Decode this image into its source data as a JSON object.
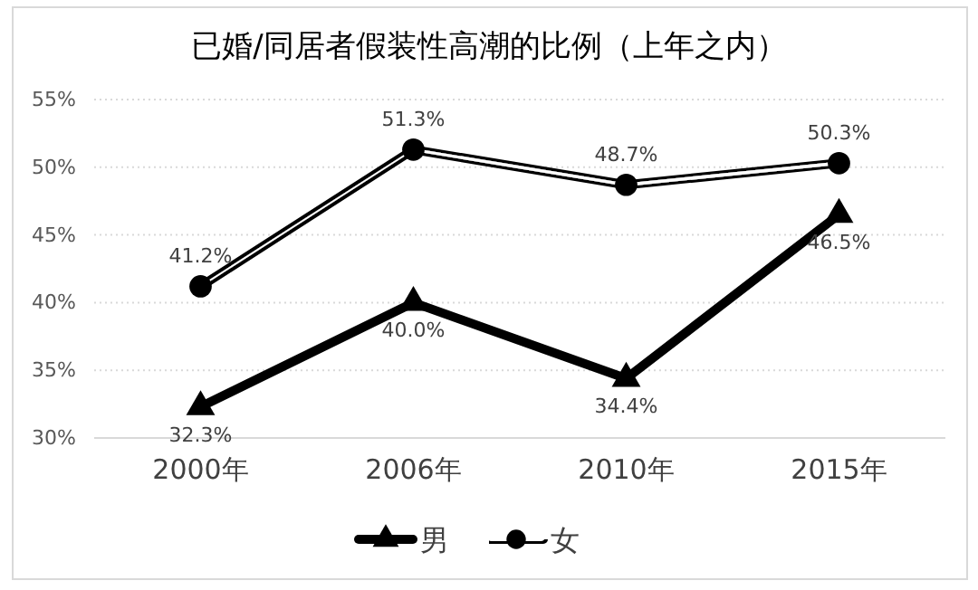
{
  "chart_data": {
    "type": "line",
    "title": "已婚/同居者假装性高潮的比例（上年之内）",
    "categories": [
      "2000年",
      "2006年",
      "2010年",
      "2015年"
    ],
    "series": [
      {
        "name": "男",
        "color": "#000000",
        "marker": "triangle",
        "values": [
          32.3,
          40.0,
          34.4,
          46.5
        ],
        "value_labels": [
          "32.3%",
          "40.0%",
          "34.4%",
          "46.5%"
        ]
      },
      {
        "name": "女",
        "color": "#000000",
        "marker": "circle",
        "values": [
          41.2,
          51.3,
          48.7,
          50.3
        ],
        "value_labels": [
          "41.2%",
          "51.3%",
          "48.7%",
          "50.3%"
        ]
      }
    ],
    "ylim": [
      30,
      55
    ],
    "yticks": [
      {
        "value": 30,
        "label": "30%"
      },
      {
        "value": 35,
        "label": "35%"
      },
      {
        "value": 40,
        "label": "40%"
      },
      {
        "value": 45,
        "label": "45%"
      },
      {
        "value": 50,
        "label": "50%"
      },
      {
        "value": 55,
        "label": "55%"
      }
    ],
    "grid": "y",
    "legend": "bottom"
  }
}
